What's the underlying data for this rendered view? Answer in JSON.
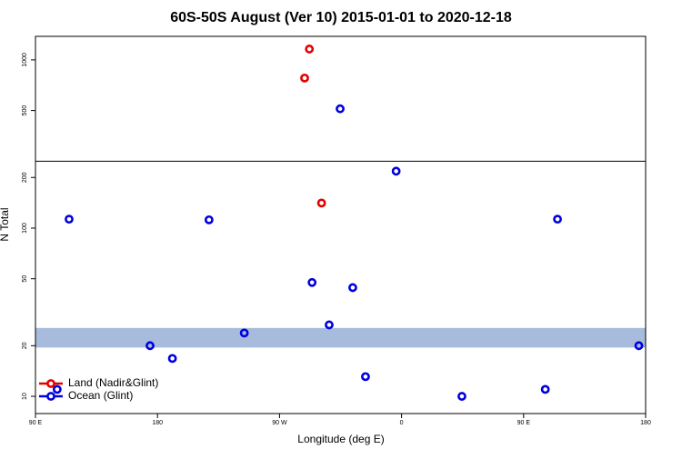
{
  "chart_data": {
    "type": "scatter",
    "title": "60S-50S August (Ver 10)   2015-01-01 to 2020-12-18",
    "x_label": "Longitude (deg E)",
    "y_label": "N Total",
    "xlim": [
      90,
      540
    ],
    "xticks": [
      {
        "value": 90,
        "label": "90 E"
      },
      180,
      {
        "value": 270,
        "label": "90 W"
      },
      {
        "value": 360,
        "label": "0"
      },
      {
        "value": 450,
        "label": "90 E"
      },
      {
        "value": 540,
        "label": "180"
      }
    ],
    "ylim": [
      7.9,
      1380
    ],
    "log_y": true,
    "yticks": [
      10,
      20,
      50,
      100,
      200,
      500,
      1000
    ],
    "hline": 250,
    "band": [
      19.5,
      25.5
    ],
    "band_color": "#a7bcdc",
    "legend": "bottomleft",
    "series": [
      {
        "name": "Land (Nadir&Glint)",
        "color": "#e50000",
        "x": [
          292,
          288.5,
          301
        ],
        "values": [
          1160,
          780,
          141
        ]
      },
      {
        "name": "Ocean (Glint)",
        "color": "#0000e0",
        "x": [
          314.7,
          356,
          114.8,
          218,
          475,
          294,
          324,
          306.6,
          244,
          174.5,
          191,
          333.4,
          106,
          404.5,
          466,
          535
        ],
        "values": [
          512,
          218,
          113,
          112,
          113,
          47.5,
          44.3,
          26.6,
          23.8,
          20,
          16.8,
          13.1,
          11,
          10,
          11,
          20
        ]
      }
    ]
  }
}
